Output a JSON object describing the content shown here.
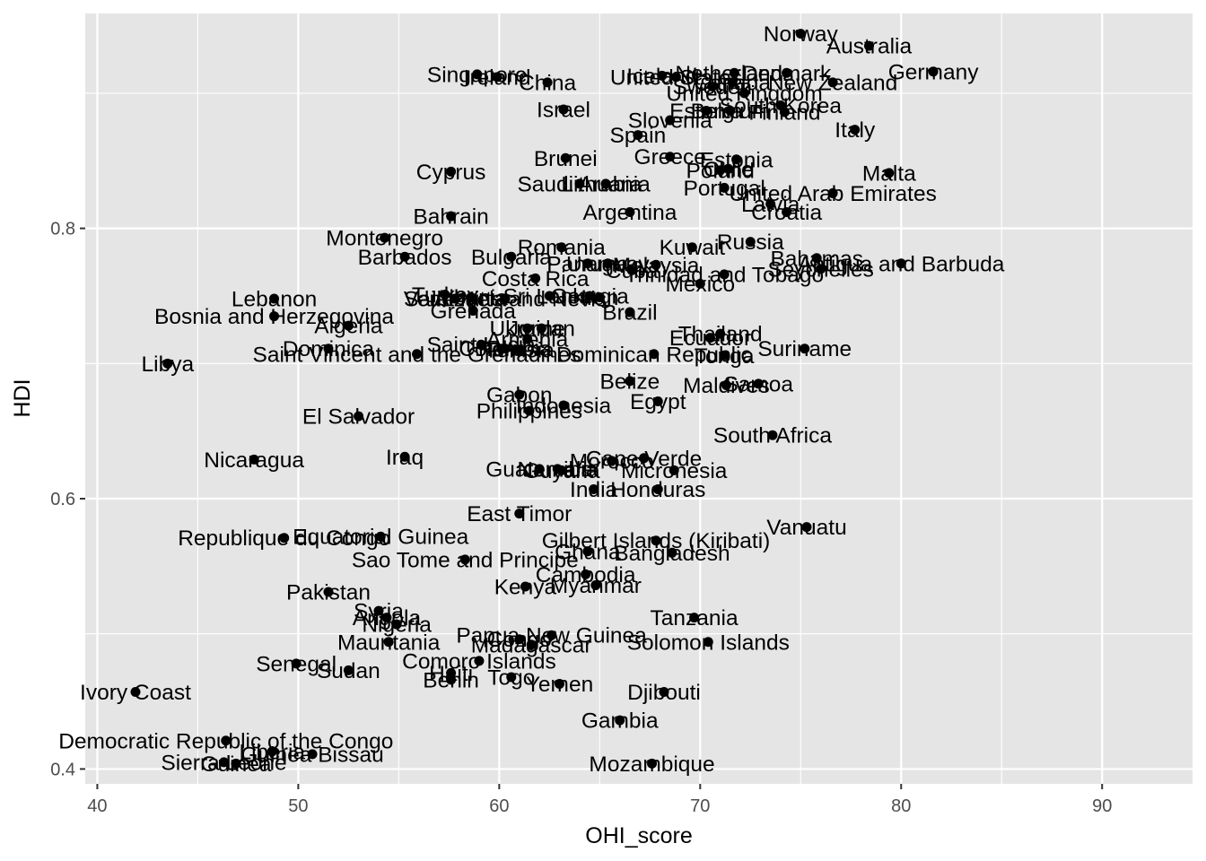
{
  "chart_data": {
    "type": "scatter",
    "title": "",
    "xlabel": "OHI_score",
    "ylabel": "HDI",
    "xlim": [
      39.4,
      94.5
    ],
    "ylim": [
      0.389,
      0.959
    ],
    "x_ticks": [
      40,
      50,
      60,
      70,
      80,
      90
    ],
    "x_tick_labels": [
      "40",
      "50",
      "60",
      "70",
      "80",
      "90"
    ],
    "y_ticks": [
      0.4,
      0.6,
      0.8
    ],
    "y_tick_labels": [
      "0.4",
      "0.6",
      "0.8"
    ],
    "grid": true,
    "point_color": "#000000",
    "background_color": "#e5e5e5",
    "grid_color": "#ffffff",
    "points": [
      {
        "label": "Norway",
        "x": 75.0,
        "y": 0.944
      },
      {
        "label": "Australia",
        "x": 78.4,
        "y": 0.935
      },
      {
        "label": "Germany",
        "x": 81.6,
        "y": 0.916
      },
      {
        "label": "Denmark",
        "x": 74.3,
        "y": 0.915
      },
      {
        "label": "Netherlands",
        "x": 71.7,
        "y": 0.915
      },
      {
        "label": "Iceland",
        "x": 68.1,
        "y": 0.913
      },
      {
        "label": "United States",
        "x": 68.8,
        "y": 0.912
      },
      {
        "label": "Singapore",
        "x": 58.9,
        "y": 0.914
      },
      {
        "label": "Ireland",
        "x": 59.9,
        "y": 0.912
      },
      {
        "label": "China",
        "x": 62.4,
        "y": 0.908
      },
      {
        "label": "New Zealand",
        "x": 76.6,
        "y": 0.908
      },
      {
        "label": "Sweden",
        "x": 70.6,
        "y": 0.905
      },
      {
        "label": "Canada",
        "x": 71.6,
        "y": 0.908
      },
      {
        "label": "United Kingdom",
        "x": 72.2,
        "y": 0.9
      },
      {
        "label": "South Korea",
        "x": 74.0,
        "y": 0.891
      },
      {
        "label": "Finland",
        "x": 74.2,
        "y": 0.886
      },
      {
        "label": "Estonia",
        "x": 70.3,
        "y": 0.887
      },
      {
        "label": "Belgium",
        "x": 71.5,
        "y": 0.887
      },
      {
        "label": "Israel",
        "x": 63.2,
        "y": 0.888
      },
      {
        "label": "Slovenia",
        "x": 68.5,
        "y": 0.88
      },
      {
        "label": "Italy",
        "x": 77.7,
        "y": 0.873
      },
      {
        "label": "Spain",
        "x": 66.9,
        "y": 0.869
      },
      {
        "label": "Brunei",
        "x": 63.3,
        "y": 0.852
      },
      {
        "label": "Greece",
        "x": 68.5,
        "y": 0.853
      },
      {
        "label": "Estonia",
        "x": 71.8,
        "y": 0.851
      },
      {
        "label": "Poland",
        "x": 71.0,
        "y": 0.843
      },
      {
        "label": "Chile",
        "x": 71.4,
        "y": 0.844
      },
      {
        "label": "Malta",
        "x": 79.4,
        "y": 0.841
      },
      {
        "label": "Cyprus",
        "x": 57.6,
        "y": 0.842
      },
      {
        "label": "Saudi Arabia",
        "x": 64.0,
        "y": 0.833
      },
      {
        "label": "Lithuania",
        "x": 65.3,
        "y": 0.833
      },
      {
        "label": "Portugal",
        "x": 71.2,
        "y": 0.83
      },
      {
        "label": "United Arab Emirates",
        "x": 76.6,
        "y": 0.826
      },
      {
        "label": "Latvia",
        "x": 73.5,
        "y": 0.818
      },
      {
        "label": "Croatia",
        "x": 74.3,
        "y": 0.812
      },
      {
        "label": "Argentina",
        "x": 66.5,
        "y": 0.812
      },
      {
        "label": "Bahrain",
        "x": 57.6,
        "y": 0.809
      },
      {
        "label": "Montenegro",
        "x": 54.3,
        "y": 0.793
      },
      {
        "label": "Russia",
        "x": 72.5,
        "y": 0.79
      },
      {
        "label": "Kuwait",
        "x": 69.6,
        "y": 0.786
      },
      {
        "label": "Romania",
        "x": 63.1,
        "y": 0.786
      },
      {
        "label": "Barbados",
        "x": 55.3,
        "y": 0.779
      },
      {
        "label": "Bulgaria",
        "x": 60.6,
        "y": 0.779
      },
      {
        "label": "Bahamas",
        "x": 75.8,
        "y": 0.778
      },
      {
        "label": "Antigua and Barbuda",
        "x": 80.0,
        "y": 0.774
      },
      {
        "label": "Seychelles",
        "x": 76.0,
        "y": 0.77
      },
      {
        "label": "Panama",
        "x": 64.4,
        "y": 0.774
      },
      {
        "label": "Uruguay",
        "x": 65.4,
        "y": 0.774
      },
      {
        "label": "Malaysia",
        "x": 67.8,
        "y": 0.773
      },
      {
        "label": "Trinidad and Tobago",
        "x": 71.2,
        "y": 0.766
      },
      {
        "label": "Cuba",
        "x": 66.6,
        "y": 0.769
      },
      {
        "label": "Costa Rica",
        "x": 61.8,
        "y": 0.763
      },
      {
        "label": "Mexico",
        "x": 70.0,
        "y": 0.759
      },
      {
        "label": "Turkey",
        "x": 57.3,
        "y": 0.751
      },
      {
        "label": "Venezuela",
        "x": 57.8,
        "y": 0.748
      },
      {
        "label": "Albania",
        "x": 58.6,
        "y": 0.749
      },
      {
        "label": "Saint Kitts and Nevis",
        "x": 60.3,
        "y": 0.748
      },
      {
        "label": "Sri Lanka",
        "x": 62.5,
        "y": 0.75
      },
      {
        "label": "Georgia",
        "x": 64.5,
        "y": 0.75
      },
      {
        "label": "Iran",
        "x": 65.0,
        "y": 0.749
      },
      {
        "label": "Lebanon",
        "x": 48.8,
        "y": 0.748
      },
      {
        "label": "Grenada",
        "x": 58.7,
        "y": 0.739
      },
      {
        "label": "Brazil",
        "x": 66.5,
        "y": 0.738
      },
      {
        "label": "Bosnia and Herzegovina",
        "x": 48.8,
        "y": 0.735
      },
      {
        "label": "Algeria",
        "x": 52.5,
        "y": 0.728
      },
      {
        "label": "Ukraine",
        "x": 61.4,
        "y": 0.726
      },
      {
        "label": "Jordan",
        "x": 62.1,
        "y": 0.726
      },
      {
        "label": "Thailand",
        "x": 71.0,
        "y": 0.722
      },
      {
        "label": "Ecuador",
        "x": 70.5,
        "y": 0.719
      },
      {
        "label": "Saint Lucia",
        "x": 59.1,
        "y": 0.714
      },
      {
        "label": "Armenia",
        "x": 61.4,
        "y": 0.718
      },
      {
        "label": "Peru",
        "x": 60.1,
        "y": 0.711
      },
      {
        "label": "Colombia",
        "x": 60.3,
        "y": 0.711
      },
      {
        "label": "Tunisia",
        "x": 61.0,
        "y": 0.71
      },
      {
        "label": "Dominica",
        "x": 51.5,
        "y": 0.711
      },
      {
        "label": "Saint Vincent and the Grenadines",
        "x": 55.9,
        "y": 0.707
      },
      {
        "label": "Dominican Republic",
        "x": 67.7,
        "y": 0.707
      },
      {
        "label": "Tonga",
        "x": 71.2,
        "y": 0.706
      },
      {
        "label": "Suriname",
        "x": 75.2,
        "y": 0.711
      },
      {
        "label": "Libya",
        "x": 43.5,
        "y": 0.7
      },
      {
        "label": "Belize",
        "x": 66.5,
        "y": 0.687
      },
      {
        "label": "Samoa",
        "x": 72.9,
        "y": 0.685
      },
      {
        "label": "Maldives",
        "x": 71.3,
        "y": 0.684
      },
      {
        "label": "Gabon",
        "x": 61.0,
        "y": 0.677
      },
      {
        "label": "Egypt",
        "x": 67.9,
        "y": 0.672
      },
      {
        "label": "Indonesia",
        "x": 63.2,
        "y": 0.669
      },
      {
        "label": "Philippines",
        "x": 61.5,
        "y": 0.665
      },
      {
        "label": "El Salvador",
        "x": 53.0,
        "y": 0.661
      },
      {
        "label": "South Africa",
        "x": 73.6,
        "y": 0.647
      },
      {
        "label": "Nicaragua",
        "x": 47.8,
        "y": 0.629
      },
      {
        "label": "Iraq",
        "x": 55.3,
        "y": 0.631
      },
      {
        "label": "Cape Verde",
        "x": 67.2,
        "y": 0.63
      },
      {
        "label": "Morocco",
        "x": 65.6,
        "y": 0.628
      },
      {
        "label": "Guatemala",
        "x": 62.0,
        "y": 0.622
      },
      {
        "label": "Namibia",
        "x": 62.9,
        "y": 0.622
      },
      {
        "label": "Guyana",
        "x": 63.1,
        "y": 0.621
      },
      {
        "label": "Micronesia",
        "x": 68.7,
        "y": 0.621
      },
      {
        "label": "Honduras",
        "x": 67.9,
        "y": 0.607
      },
      {
        "label": "India",
        "x": 64.7,
        "y": 0.607
      },
      {
        "label": "East Timor",
        "x": 61.0,
        "y": 0.589
      },
      {
        "label": "Vanuatu",
        "x": 75.3,
        "y": 0.579
      },
      {
        "label": "Republique du Congo",
        "x": 49.3,
        "y": 0.571
      },
      {
        "label": "Equatorial Guinea",
        "x": 54.1,
        "y": 0.572
      },
      {
        "label": "Gilbert Islands (Kiribati)",
        "x": 67.8,
        "y": 0.569
      },
      {
        "label": "Ghana",
        "x": 64.4,
        "y": 0.561
      },
      {
        "label": "Bangladesh",
        "x": 68.6,
        "y": 0.56
      },
      {
        "label": "Sao Tome and Principe",
        "x": 58.3,
        "y": 0.555
      },
      {
        "label": "Cambodia",
        "x": 64.3,
        "y": 0.544
      },
      {
        "label": "Kenya",
        "x": 61.3,
        "y": 0.535
      },
      {
        "label": "Myanmar",
        "x": 64.8,
        "y": 0.536
      },
      {
        "label": "Pakistan",
        "x": 51.5,
        "y": 0.531
      },
      {
        "label": "Tanzania",
        "x": 69.7,
        "y": 0.512
      },
      {
        "label": "Syria",
        "x": 54.0,
        "y": 0.517
      },
      {
        "label": "Angola",
        "x": 54.4,
        "y": 0.512
      },
      {
        "label": "Nigeria",
        "x": 54.9,
        "y": 0.507
      },
      {
        "label": "Papua New Guinea",
        "x": 62.6,
        "y": 0.499
      },
      {
        "label": "Congo",
        "x": 61.0,
        "y": 0.496
      },
      {
        "label": "Madagascar",
        "x": 61.6,
        "y": 0.492
      },
      {
        "label": "Solomon Islands",
        "x": 70.4,
        "y": 0.494
      },
      {
        "label": "Mauritania",
        "x": 54.5,
        "y": 0.494
      },
      {
        "label": "Senegal",
        "x": 49.9,
        "y": 0.478
      },
      {
        "label": "Sudan",
        "x": 52.5,
        "y": 0.473
      },
      {
        "label": "Comoro Islands",
        "x": 59.0,
        "y": 0.48
      },
      {
        "label": "Haiti",
        "x": 57.6,
        "y": 0.471
      },
      {
        "label": "Benin",
        "x": 57.6,
        "y": 0.466
      },
      {
        "label": "Togo",
        "x": 60.6,
        "y": 0.468
      },
      {
        "label": "Yemen",
        "x": 63.0,
        "y": 0.463
      },
      {
        "label": "Djibouti",
        "x": 68.2,
        "y": 0.457
      },
      {
        "label": "Ivory Coast",
        "x": 41.9,
        "y": 0.457
      },
      {
        "label": "Gambia",
        "x": 66.0,
        "y": 0.436
      },
      {
        "label": "Democratic Republic of the Congo",
        "x": 46.4,
        "y": 0.421
      },
      {
        "label": "Liberia",
        "x": 48.7,
        "y": 0.413
      },
      {
        "label": "Guinea Bissau",
        "x": 50.7,
        "y": 0.411
      },
      {
        "label": "Sierra Leone",
        "x": 46.3,
        "y": 0.405
      },
      {
        "label": "Guinea",
        "x": 46.9,
        "y": 0.404
      },
      {
        "label": "Mozambique",
        "x": 67.6,
        "y": 0.404
      }
    ]
  }
}
